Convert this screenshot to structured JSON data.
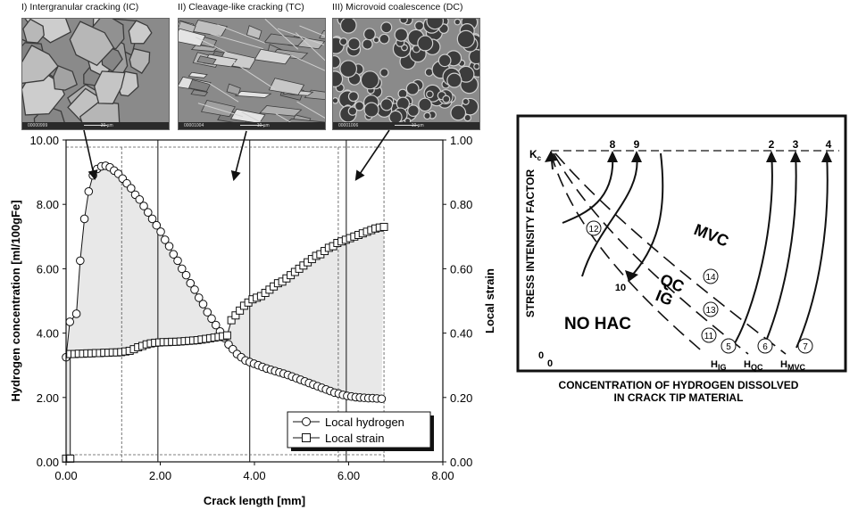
{
  "photos": [
    {
      "caption": "I) Intergranular cracking (IC)",
      "id_label": "00000999",
      "scale_label": "30 µm",
      "texture": "intergranular"
    },
    {
      "caption": "II) Cleavage-like cracking (TC)",
      "id_label": "00001004",
      "scale_label": "10 µm",
      "texture": "cleavage"
    },
    {
      "caption": "III) Microvoid coalescence (DC)",
      "id_label": "00001006",
      "scale_label": "10 µm",
      "texture": "microvoid"
    }
  ],
  "colors": {
    "shade": "#e8e8e8",
    "line": "#111111",
    "photo_dark": "#3c3c3c",
    "photo_mid": "#8a8a8a",
    "photo_light": "#d0d0d0"
  },
  "chart_data": [
    {
      "type": "line",
      "xlabel": "Crack length [mm]",
      "ylabel": "Hydrogen concentration [ml/100gFe]",
      "y2label": "Local strain",
      "xlim": [
        0,
        8
      ],
      "ylim": [
        0,
        10
      ],
      "y2lim": [
        0,
        1
      ],
      "xticks": [
        "0.00",
        "2.00",
        "4.00",
        "6.00",
        "8.00"
      ],
      "yticks": [
        "0.00",
        "2.00",
        "4.00",
        "6.00",
        "8.00",
        "10.00"
      ],
      "y2ticks": [
        "0.00",
        "0.20",
        "0.40",
        "0.60",
        "0.80",
        "1.00"
      ],
      "legend_position": "bottom-right",
      "grid": false,
      "vlines_solid": [
        1.95,
        3.9,
        5.95
      ],
      "vlines_dashed": [
        1.18,
        5.78,
        6.75
      ],
      "series": [
        {
          "name": "Local hydrogen",
          "marker": "circle",
          "axis": "left",
          "x": [
            0.0,
            0.08,
            0.22,
            0.3,
            0.39,
            0.48,
            0.57,
            0.66,
            0.75,
            0.84,
            0.93,
            1.02,
            1.11,
            1.2,
            1.29,
            1.38,
            1.47,
            1.56,
            1.65,
            1.74,
            1.83,
            1.92,
            2.01,
            2.1,
            2.19,
            2.28,
            2.37,
            2.46,
            2.55,
            2.64,
            2.73,
            2.82,
            2.91,
            3.0,
            3.09,
            3.18,
            3.27,
            3.36,
            3.45,
            3.54,
            3.63,
            3.72,
            3.81,
            3.9,
            3.99,
            4.08,
            4.17,
            4.26,
            4.35,
            4.44,
            4.53,
            4.62,
            4.71,
            4.8,
            4.89,
            4.98,
            5.07,
            5.16,
            5.25,
            5.34,
            5.43,
            5.52,
            5.61,
            5.7,
            5.79,
            5.88,
            5.97,
            6.06,
            6.15,
            6.24,
            6.33,
            6.42,
            6.51,
            6.6,
            6.7
          ],
          "y": [
            3.25,
            4.35,
            4.6,
            6.25,
            7.55,
            8.4,
            8.9,
            9.1,
            9.18,
            9.2,
            9.15,
            9.05,
            8.95,
            8.8,
            8.65,
            8.5,
            8.3,
            8.15,
            7.95,
            7.75,
            7.55,
            7.35,
            7.15,
            6.9,
            6.7,
            6.45,
            6.25,
            6.0,
            5.8,
            5.55,
            5.35,
            5.1,
            4.9,
            4.65,
            4.45,
            4.25,
            4.05,
            3.85,
            3.65,
            3.5,
            3.35,
            3.25,
            3.15,
            3.1,
            3.05,
            3.0,
            2.95,
            2.9,
            2.86,
            2.82,
            2.78,
            2.74,
            2.7,
            2.65,
            2.6,
            2.55,
            2.5,
            2.45,
            2.4,
            2.35,
            2.3,
            2.25,
            2.2,
            2.15,
            2.12,
            2.08,
            2.05,
            2.03,
            2.01,
            2.0,
            1.99,
            1.98,
            1.98,
            1.97,
            1.96
          ]
        },
        {
          "name": "Local strain",
          "marker": "square",
          "axis": "right",
          "x": [
            0.0,
            0.09,
            0.09,
            0.18,
            0.27,
            0.36,
            0.45,
            0.54,
            0.63,
            0.72,
            0.81,
            0.9,
            0.99,
            1.08,
            1.17,
            1.26,
            1.35,
            1.44,
            1.53,
            1.62,
            1.71,
            1.8,
            1.89,
            1.98,
            2.07,
            2.16,
            2.25,
            2.34,
            2.43,
            2.52,
            2.61,
            2.7,
            2.79,
            2.88,
            2.97,
            3.06,
            3.15,
            3.24,
            3.33,
            3.42,
            3.51,
            3.6,
            3.69,
            3.78,
            3.87,
            3.96,
            4.05,
            4.14,
            4.23,
            4.32,
            4.41,
            4.5,
            4.59,
            4.68,
            4.77,
            4.86,
            4.95,
            5.04,
            5.13,
            5.22,
            5.31,
            5.4,
            5.49,
            5.58,
            5.67,
            5.76,
            5.85,
            5.94,
            6.03,
            6.12,
            6.21,
            6.3,
            6.39,
            6.48,
            6.57,
            6.66,
            6.75
          ],
          "y": [
            0.01,
            0.01,
            0.335,
            0.335,
            0.336,
            0.336,
            0.337,
            0.337,
            0.338,
            0.338,
            0.339,
            0.339,
            0.34,
            0.34,
            0.341,
            0.343,
            0.345,
            0.35,
            0.356,
            0.36,
            0.365,
            0.368,
            0.37,
            0.371,
            0.372,
            0.372,
            0.373,
            0.373,
            0.374,
            0.375,
            0.376,
            0.377,
            0.378,
            0.38,
            0.382,
            0.384,
            0.386,
            0.388,
            0.39,
            0.393,
            0.44,
            0.455,
            0.47,
            0.485,
            0.495,
            0.505,
            0.51,
            0.515,
            0.525,
            0.535,
            0.545,
            0.555,
            0.56,
            0.57,
            0.58,
            0.59,
            0.6,
            0.61,
            0.62,
            0.63,
            0.64,
            0.645,
            0.655,
            0.665,
            0.67,
            0.68,
            0.685,
            0.69,
            0.695,
            0.7,
            0.705,
            0.71,
            0.715,
            0.72,
            0.725,
            0.728,
            0.73
          ]
        }
      ]
    },
    {
      "type": "diagram",
      "ylabel": "STRESS INTENSITY FACTOR",
      "xlabel_line1": "CONCENTRATION OF HYDROGEN DISSOLVED",
      "xlabel_line2": "IN CRACK TIP MATERIAL",
      "kc_label": "K",
      "kc_sub": "c",
      "origin_y": "0",
      "origin_x": "0",
      "region_mvc": "MVC",
      "region_qc": "QC",
      "region_ig": "IG",
      "region_nohac": "NO HAC",
      "top_numbers": [
        "8",
        "9",
        "2",
        "3",
        "4"
      ],
      "curve_label_10": "10",
      "circled": [
        "12",
        "14",
        "13",
        "11",
        "5",
        "6",
        "7"
      ],
      "h_labels": [
        {
          "main": "H",
          "sub": "IG"
        },
        {
          "main": "H",
          "sub": "QC"
        },
        {
          "main": "H",
          "sub": "MVC"
        }
      ]
    }
  ]
}
